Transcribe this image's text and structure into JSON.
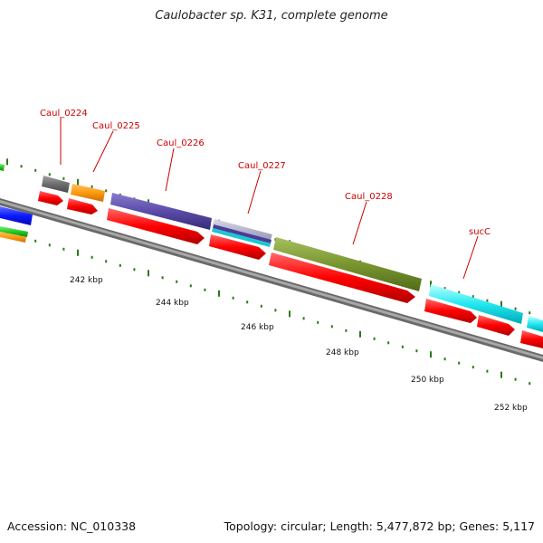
{
  "title": "Caulobacter sp. K31, complete genome",
  "footer": {
    "accession": "Accession: NC_010338",
    "summary": "Topology: circular; Length: 5,477,872 bp; Genes: 5,117"
  },
  "colors": {
    "label": "#cc0000",
    "tick": "#2a7a1a",
    "backbone": "#888888",
    "cds": "#ff0000"
  },
  "gene_labels": [
    "Caul_0224",
    "Caul_0225",
    "Caul_0226",
    "Caul_0227",
    "Caul_0228",
    "sucC"
  ],
  "scale_labels": [
    "242 kbp",
    "244 kbp",
    "246 kbp",
    "248 kbp",
    "250 kbp",
    "252 kbp"
  ]
}
